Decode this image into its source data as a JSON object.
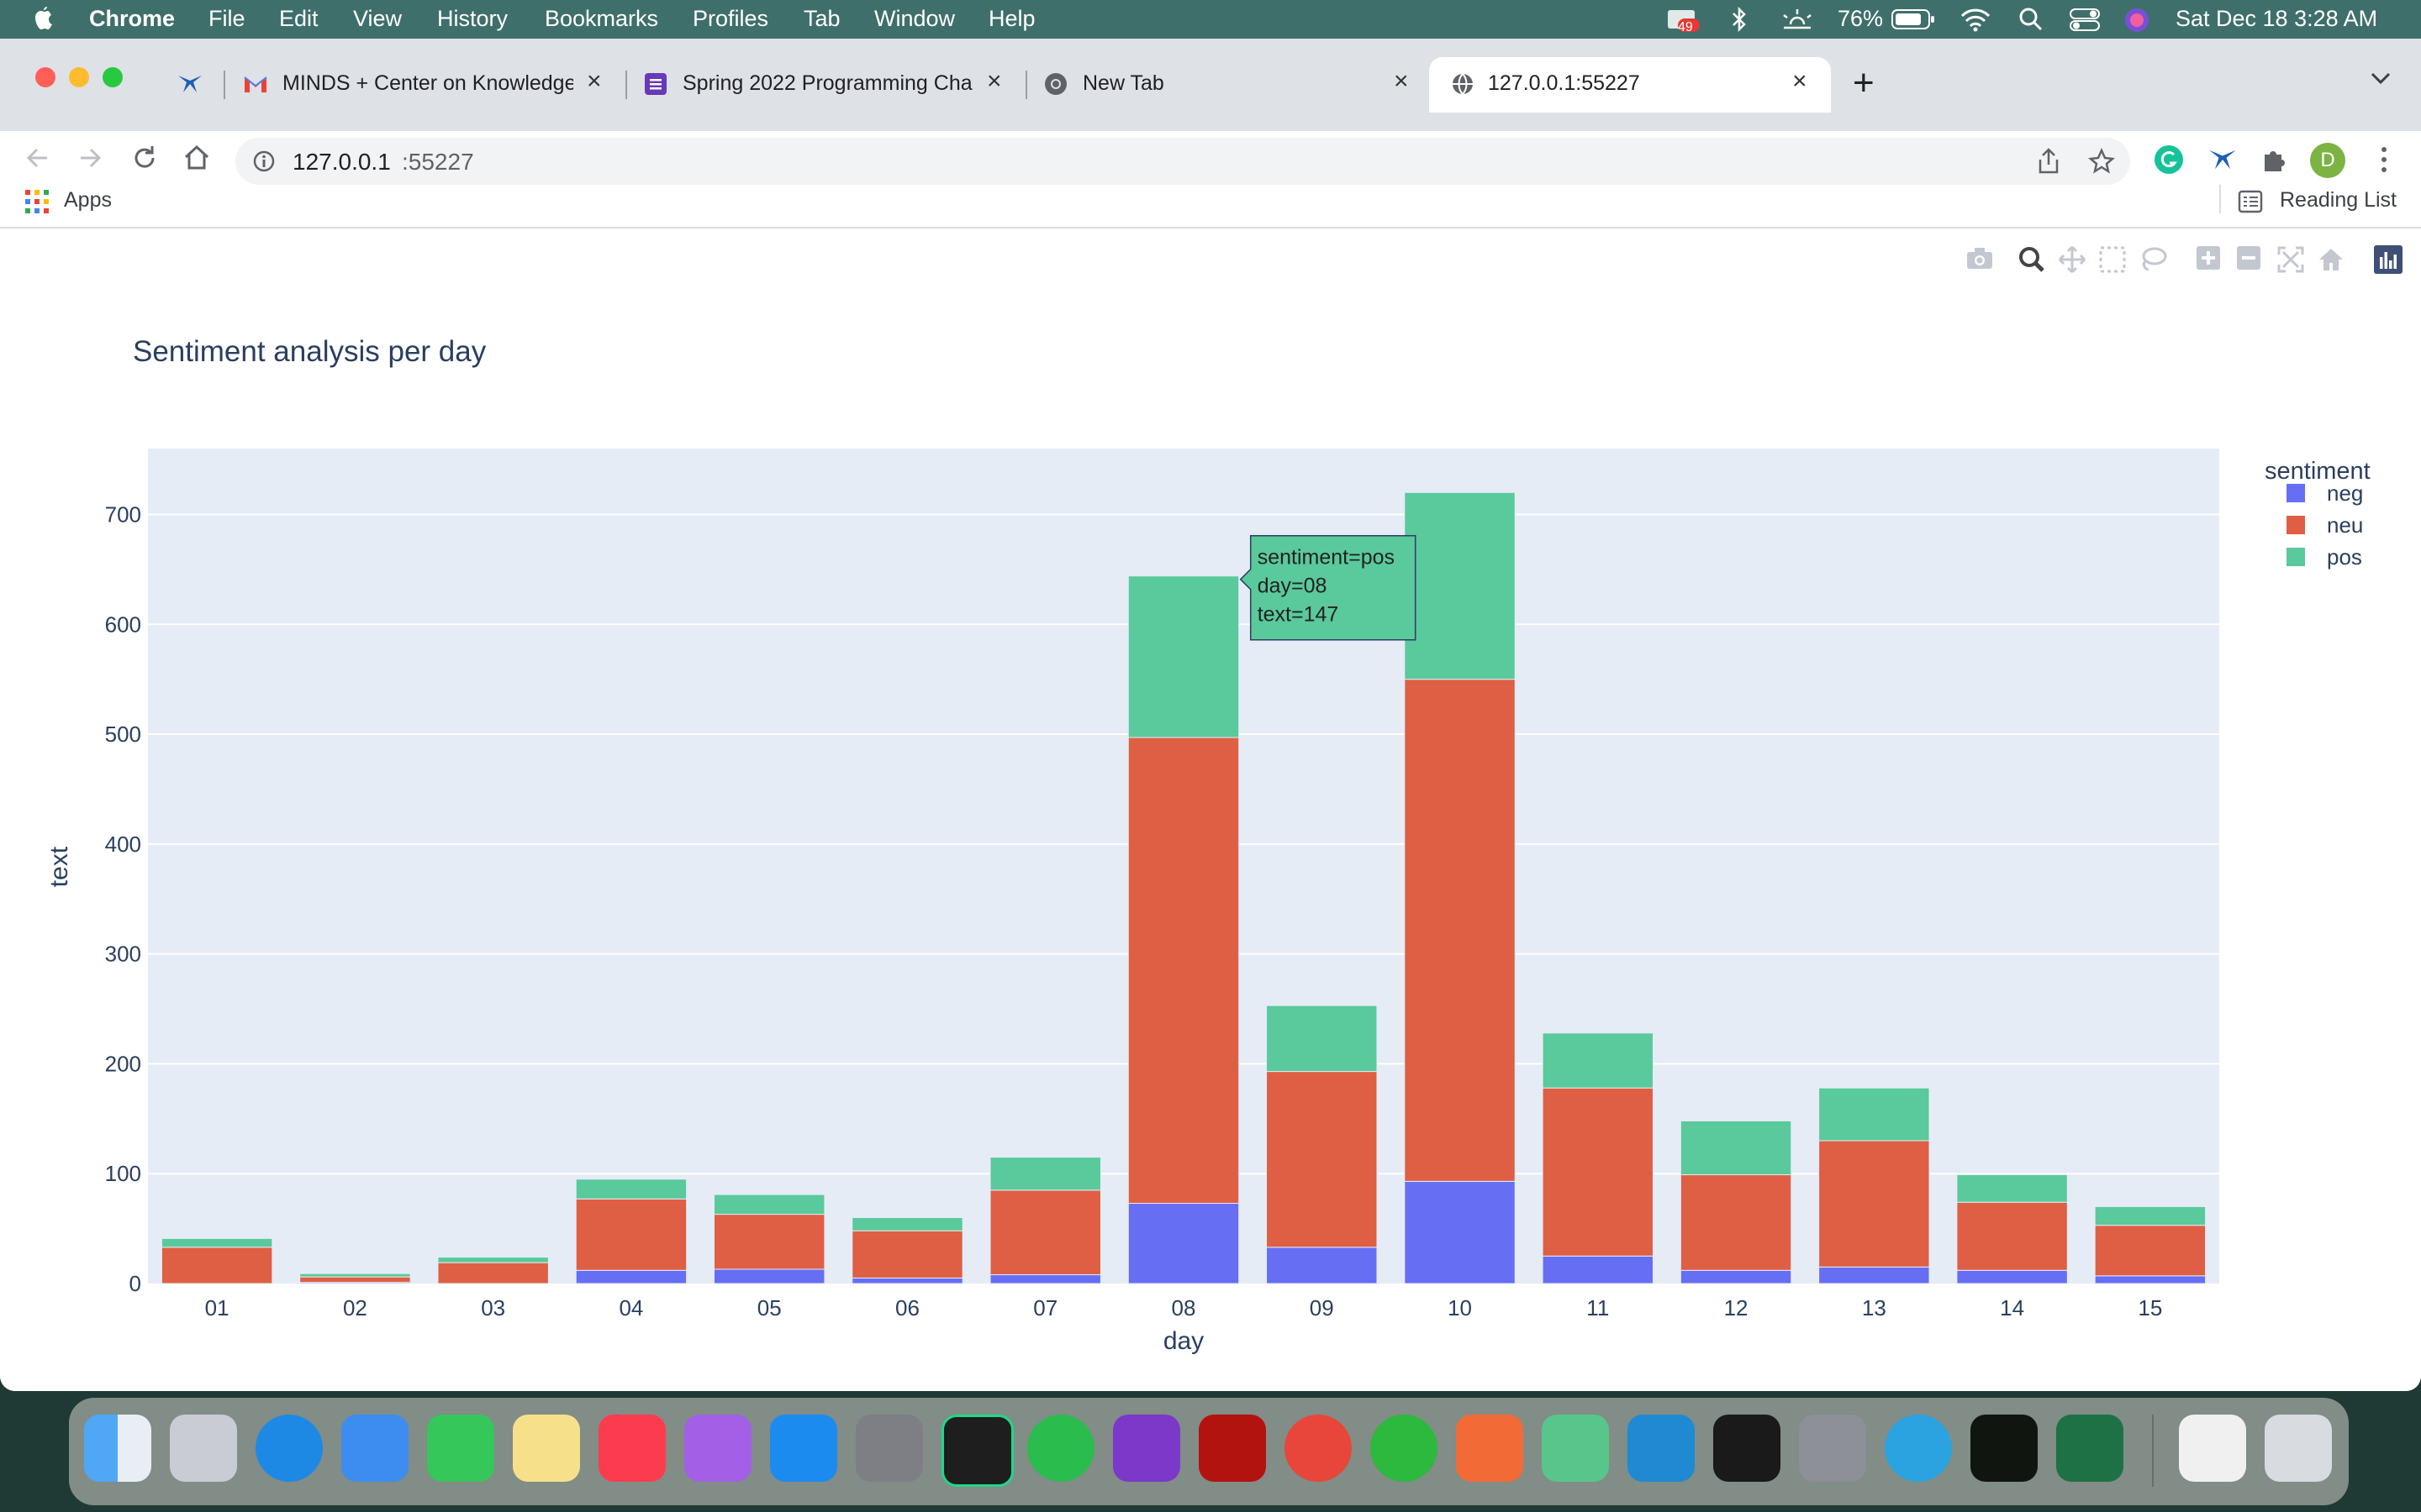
{
  "menubar": {
    "apple": "",
    "app": "Chrome",
    "items": [
      "File",
      "Edit",
      "View",
      "History",
      "Bookmarks",
      "Profiles",
      "Tab",
      "Window",
      "Help"
    ],
    "battery": "76%",
    "datetime": "Sat Dec 18  3:28 AM",
    "notif_badge": "49"
  },
  "tabs": [
    {
      "label": "MINDS + Center on Knowledge",
      "close": "×"
    },
    {
      "label": "Spring 2022 Programming Cha",
      "close": "×"
    },
    {
      "label": "New Tab",
      "close": "×"
    },
    {
      "label": "127.0.0.1:55227",
      "close": "×"
    }
  ],
  "new_tab": "+",
  "address": {
    "host": "127.0.0.1",
    "port": ":55227"
  },
  "profile_initial": "D",
  "bookmarks": {
    "apps": "Apps",
    "reading_list": "Reading List"
  },
  "chart_data": {
    "type": "bar",
    "barmode": "stack",
    "title": "Sentiment analysis per day",
    "xlabel": "day",
    "ylabel": "text",
    "ylim": [
      0,
      760
    ],
    "yticks": [
      0,
      100,
      200,
      300,
      400,
      500,
      600,
      700
    ],
    "grid": true,
    "legend_title": "sentiment",
    "legend_position": "top-right",
    "categories": [
      "01",
      "02",
      "03",
      "04",
      "05",
      "06",
      "07",
      "08",
      "09",
      "10",
      "11",
      "12",
      "13",
      "14",
      "15"
    ],
    "series": [
      {
        "name": "neg",
        "color": "#636efa",
        "values": [
          0,
          1,
          0,
          12,
          13,
          5,
          8,
          73,
          33,
          93,
          25,
          12,
          15,
          12,
          7
        ]
      },
      {
        "name": "neu",
        "color": "#ef553b",
        "values": [
          33,
          5,
          19,
          65,
          50,
          43,
          77,
          424,
          160,
          457,
          153,
          87,
          115,
          62,
          46
        ]
      },
      {
        "name": "pos",
        "color": "#00cc96",
        "values": [
          8,
          3,
          5,
          18,
          18,
          12,
          30,
          147,
          60,
          170,
          50,
          49,
          48,
          25,
          17
        ]
      }
    ],
    "tooltip": {
      "lines": [
        "sentiment=pos",
        "day=08",
        "text=147"
      ],
      "series": "pos",
      "category": "08"
    }
  },
  "colors": {
    "plot_bg": "#e5ecf6",
    "pos_fill": "#5ac99b",
    "neu_fill": "#de5f44",
    "neg_fill": "#666ef4"
  }
}
